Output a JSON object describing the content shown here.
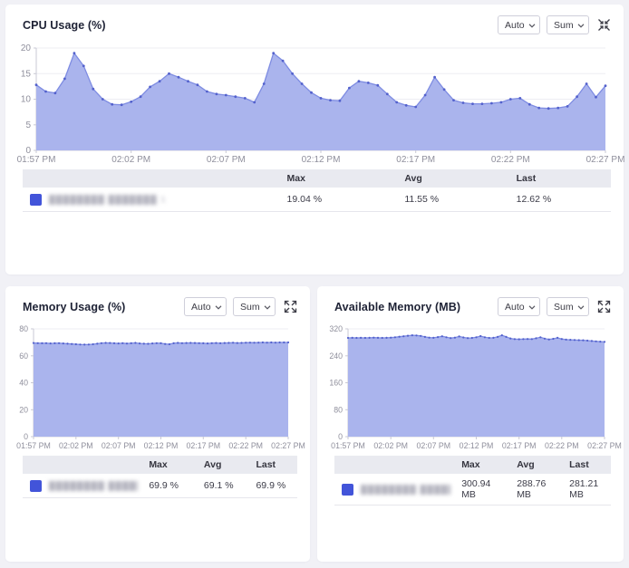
{
  "colors": {
    "area_fill": "#aab4ed",
    "line": "#7e8ce2",
    "dot": "#5361cc",
    "legend_swatch": "#4254d9",
    "axis_text": "#8f8f9c"
  },
  "panels": [
    {
      "title": "CPU Usage (%)",
      "controls": {
        "scale": "Auto",
        "aggregation": "Sum",
        "resize_action": "compress"
      },
      "legend": {
        "headers": [
          "Max",
          "Avg",
          "Last"
        ],
        "rows": [
          {
            "label": "████████ ███████ 1",
            "max": "19.04 %",
            "avg": "11.55 %",
            "last": "12.62 %"
          }
        ]
      },
      "chart_data": {
        "type": "area",
        "title": "CPU Usage (%)",
        "xlabel": "",
        "ylabel": "",
        "ylim": [
          0,
          20
        ],
        "yticks": [
          0,
          5,
          10,
          15,
          20
        ],
        "x_tick_labels": [
          "01:57 PM",
          "02:02 PM",
          "02:07 PM",
          "02:12 PM",
          "02:17 PM",
          "02:22 PM",
          "02:27 PM"
        ],
        "interval_seconds": 30,
        "values": [
          12.8,
          11.5,
          11.2,
          14.0,
          19.0,
          16.5,
          12.0,
          10.0,
          9.0,
          8.9,
          9.5,
          10.5,
          12.4,
          13.5,
          15.0,
          14.3,
          13.5,
          12.8,
          11.5,
          11.0,
          10.8,
          10.5,
          10.2,
          9.4,
          13.0,
          19.0,
          17.5,
          15.0,
          13.0,
          11.3,
          10.2,
          9.8,
          9.7,
          12.2,
          13.5,
          13.2,
          12.7,
          11.0,
          9.4,
          8.8,
          8.5,
          10.8,
          14.3,
          11.9,
          9.8,
          9.3,
          9.1,
          9.1,
          9.2,
          9.4,
          10.0,
          10.2,
          9.0,
          8.3,
          8.2,
          8.3,
          8.6,
          10.5,
          13.0,
          10.4,
          12.62
        ]
      }
    },
    {
      "title": "Memory Usage (%)",
      "controls": {
        "scale": "Auto",
        "aggregation": "Sum",
        "resize_action": "expand"
      },
      "legend": {
        "headers": [
          "Max",
          "Avg",
          "Last"
        ],
        "rows": [
          {
            "label": "████████ ███████ 1",
            "max": "69.9 %",
            "avg": "69.1 %",
            "last": "69.9 %"
          }
        ]
      },
      "chart_data": {
        "type": "area",
        "title": "Memory Usage (%)",
        "xlabel": "",
        "ylabel": "",
        "ylim": [
          0,
          80
        ],
        "yticks": [
          0,
          20,
          40,
          60,
          80
        ],
        "x_tick_labels": [
          "01:57 PM",
          "02:02 PM",
          "02:07 PM",
          "02:12 PM",
          "02:17 PM",
          "02:22 PM",
          "02:27 PM"
        ],
        "interval_seconds": 30,
        "values": [
          69.5,
          69.4,
          69.3,
          69.4,
          69.2,
          69.3,
          69.4,
          69.2,
          69.0,
          68.8,
          68.6,
          68.4,
          68.3,
          68.4,
          68.6,
          69.0,
          69.4,
          69.6,
          69.5,
          69.3,
          69.2,
          69.4,
          69.1,
          69.3,
          69.6,
          69.2,
          69.0,
          68.9,
          69.2,
          69.4,
          69.3,
          68.8,
          68.6,
          69.3,
          69.6,
          69.4,
          69.5,
          69.6,
          69.5,
          69.4,
          69.3,
          69.2,
          69.4,
          69.5,
          69.3,
          69.5,
          69.6,
          69.7,
          69.5,
          69.6,
          69.7,
          69.8,
          69.7,
          69.8,
          69.9,
          69.8,
          69.9,
          69.8,
          69.9,
          69.9,
          69.9
        ]
      }
    },
    {
      "title": "Available Memory (MB)",
      "controls": {
        "scale": "Auto",
        "aggregation": "Sum",
        "resize_action": "expand"
      },
      "legend": {
        "headers": [
          "Max",
          "Avg",
          "Last"
        ],
        "rows": [
          {
            "label": "████████ ███████ 1",
            "max": "300.94 MB",
            "avg": "288.76 MB",
            "last": "281.21 MB"
          }
        ]
      },
      "chart_data": {
        "type": "area",
        "title": "Available Memory (MB)",
        "xlabel": "",
        "ylabel": "",
        "ylim": [
          0,
          320
        ],
        "yticks": [
          0,
          80,
          160,
          240,
          320
        ],
        "x_tick_labels": [
          "01:57 PM",
          "02:02 PM",
          "02:07 PM",
          "02:12 PM",
          "02:17 PM",
          "02:22 PM",
          "02:27 PM"
        ],
        "interval_seconds": 30,
        "values": [
          293,
          293.5,
          293,
          293.5,
          293,
          293.5,
          294,
          293.5,
          293,
          293.5,
          294,
          295,
          296.5,
          298,
          299.5,
          300.9,
          300.5,
          299,
          296,
          294,
          293.5,
          295.5,
          298,
          295,
          292.5,
          294,
          297.5,
          294.5,
          292.5,
          293,
          295,
          298.5,
          295,
          293,
          293.5,
          296,
          300.9,
          296,
          291.5,
          289.5,
          289,
          289.5,
          290,
          289.5,
          292,
          295,
          291,
          288.5,
          290.5,
          293.5,
          290,
          288,
          287.5,
          287,
          286.5,
          286,
          285,
          284,
          283,
          282,
          281.21
        ]
      }
    }
  ]
}
